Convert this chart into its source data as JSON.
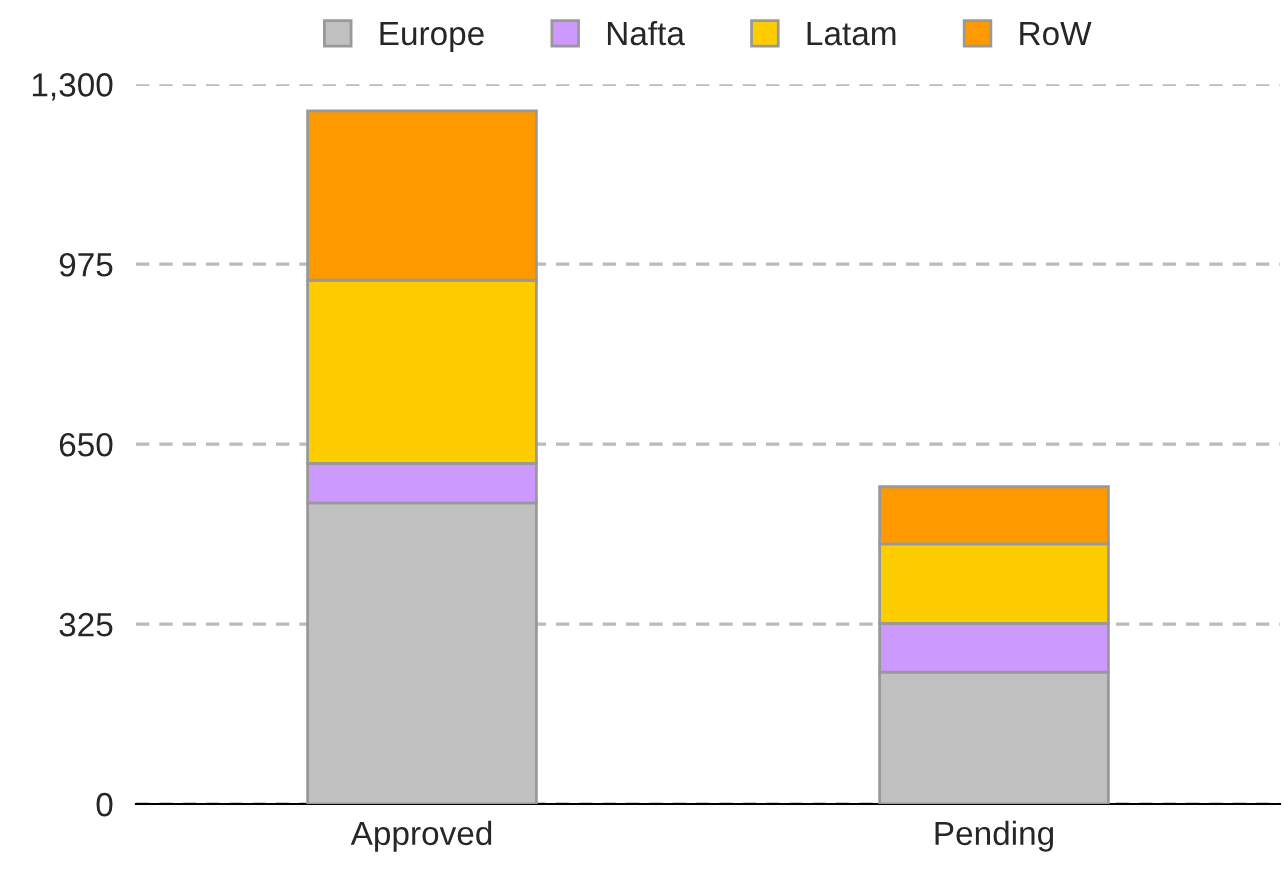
{
  "chart_data": {
    "type": "bar",
    "stacked": true,
    "categories": [
      "Approved",
      "Pending"
    ],
    "series": [
      {
        "name": "Europe",
        "color": "#c0c0c0",
        "values": [
          544,
          238
        ]
      },
      {
        "name": "Nafta",
        "color": "#cc99ff",
        "values": [
          71,
          88
        ]
      },
      {
        "name": "Latam",
        "color": "#ffcc00",
        "values": [
          331,
          144
        ]
      },
      {
        "name": "RoW",
        "color": "#ff9900",
        "values": [
          306,
          103
        ]
      }
    ],
    "ylim": [
      0,
      1300
    ],
    "yticks": [
      0,
      325,
      650,
      975,
      {
        "value": 1300,
        "label": "1,300"
      }
    ],
    "grid": "y",
    "legend": "top"
  }
}
